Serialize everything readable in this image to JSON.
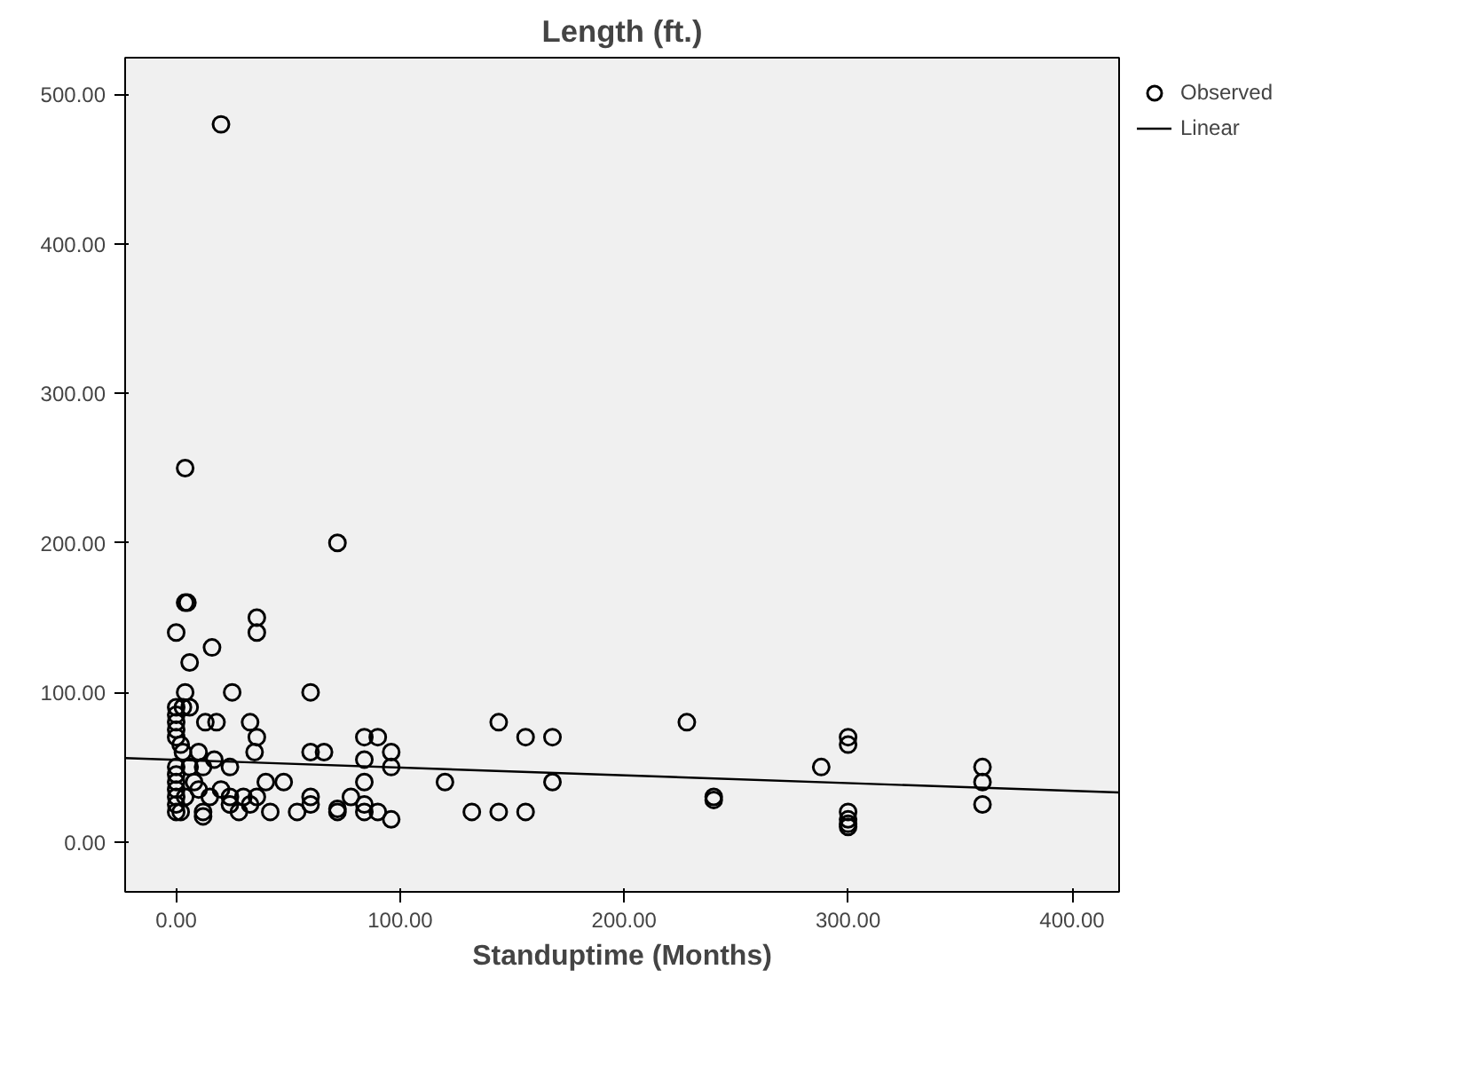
{
  "chart_data": {
    "type": "scatter",
    "title": "Length (ft.)",
    "xlabel": "Standuptime (Months)",
    "xlim": [
      -22.8,
      421
    ],
    "ylim": [
      -33.5,
      524.6
    ],
    "xticks": [
      {
        "value": 0,
        "label": "0.00"
      },
      {
        "value": 100,
        "label": "100.00"
      },
      {
        "value": 200,
        "label": "200.00"
      },
      {
        "value": 300,
        "label": "300.00"
      },
      {
        "value": 400,
        "label": "400.00"
      }
    ],
    "yticks": [
      {
        "value": 0,
        "label": "0.00"
      },
      {
        "value": 100,
        "label": "100.00"
      },
      {
        "value": 200,
        "label": "200.00"
      },
      {
        "value": 300,
        "label": "300.00"
      },
      {
        "value": 400,
        "label": "400.00"
      },
      {
        "value": 500,
        "label": "500.00"
      }
    ],
    "grid": false,
    "legend": "top right",
    "series": [
      {
        "name": "Observed",
        "marker": "circle",
        "color": "#000000",
        "x": [
          20,
          4,
          72,
          4,
          5,
          0,
          36,
          36,
          6,
          16,
          60,
          25,
          4,
          0,
          0,
          0,
          6,
          3,
          0,
          0,
          2,
          3,
          10,
          13,
          18,
          33,
          36,
          35,
          24,
          12,
          6,
          0,
          0,
          0,
          0,
          0,
          0,
          0,
          2,
          4,
          8,
          10,
          12,
          12,
          15,
          17,
          20,
          24,
          24,
          28,
          30,
          33,
          36,
          40,
          42,
          48,
          54,
          60,
          60,
          60,
          66,
          72,
          72,
          78,
          84,
          84,
          84,
          84,
          84,
          90,
          90,
          96,
          96,
          96,
          120,
          132,
          144,
          144,
          156,
          156,
          168,
          168,
          228,
          240,
          240,
          288,
          300,
          300,
          300,
          300,
          300,
          300,
          360,
          360,
          360
        ],
        "values": [
          480,
          250,
          200,
          160,
          160,
          140,
          150,
          140,
          120,
          130,
          100,
          100,
          100,
          90,
          85,
          80,
          90,
          90,
          75,
          70,
          65,
          60,
          60,
          80,
          80,
          80,
          70,
          60,
          50,
          50,
          50,
          50,
          45,
          40,
          35,
          30,
          25,
          20,
          20,
          30,
          40,
          35,
          20,
          17,
          30,
          55,
          35,
          30,
          25,
          20,
          30,
          25,
          30,
          40,
          20,
          40,
          20,
          30,
          25,
          60,
          60,
          22,
          20,
          30,
          70,
          55,
          40,
          25,
          20,
          70,
          20,
          60,
          50,
          15,
          40,
          20,
          80,
          20,
          70,
          20,
          70,
          40,
          80,
          30,
          28,
          50,
          70,
          65,
          20,
          15,
          12,
          10,
          50,
          40,
          25
        ]
      },
      {
        "name": "Linear",
        "type": "line",
        "color": "#000000",
        "line_style": "solid",
        "x": [
          -22.8,
          421
        ],
        "values": [
          56,
          33
        ]
      }
    ]
  }
}
